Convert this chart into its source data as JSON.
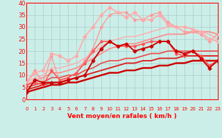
{
  "xlabel": "Vent moyen/en rafales ( km/h )",
  "bg_color": "#cceee8",
  "grid_color": "#aacccc",
  "xlim": [
    0,
    23
  ],
  "ylim": [
    0,
    40
  ],
  "xticks": [
    0,
    1,
    2,
    3,
    4,
    5,
    6,
    7,
    8,
    9,
    10,
    11,
    12,
    13,
    14,
    15,
    16,
    17,
    18,
    19,
    20,
    21,
    22,
    23
  ],
  "yticks": [
    0,
    5,
    10,
    15,
    20,
    25,
    30,
    35,
    40
  ],
  "series": [
    {
      "x": [
        0,
        1,
        2,
        3,
        4,
        5,
        6,
        7,
        8,
        9,
        10,
        11,
        12,
        13,
        14,
        15,
        16,
        17,
        18,
        19,
        20,
        21,
        22,
        23
      ],
      "y": [
        3,
        4,
        5,
        6,
        6,
        7,
        7,
        8,
        9,
        10,
        11,
        11,
        12,
        12,
        13,
        13,
        14,
        14,
        15,
        15,
        16,
        16,
        16,
        16
      ],
      "color": "#cc0000",
      "lw": 1.8,
      "marker": null,
      "ms": 0,
      "zorder": 5
    },
    {
      "x": [
        0,
        1,
        2,
        3,
        4,
        5,
        6,
        7,
        8,
        9,
        10,
        11,
        12,
        13,
        14,
        15,
        16,
        17,
        18,
        19,
        20,
        21,
        22,
        23
      ],
      "y": [
        4,
        5,
        6,
        7,
        7,
        8,
        9,
        10,
        11,
        12,
        13,
        14,
        15,
        15,
        16,
        16,
        17,
        17,
        17,
        18,
        18,
        18,
        18,
        18
      ],
      "color": "#dd2222",
      "lw": 1.4,
      "marker": null,
      "ms": 0,
      "zorder": 4
    },
    {
      "x": [
        0,
        1,
        2,
        3,
        4,
        5,
        6,
        7,
        8,
        9,
        10,
        11,
        12,
        13,
        14,
        15,
        16,
        17,
        18,
        19,
        20,
        21,
        22,
        23
      ],
      "y": [
        5,
        6,
        7,
        9,
        9,
        10,
        10,
        12,
        13,
        15,
        16,
        16,
        17,
        17,
        18,
        19,
        19,
        20,
        20,
        20,
        20,
        20,
        20,
        20
      ],
      "color": "#ee4444",
      "lw": 1.2,
      "marker": null,
      "ms": 0,
      "zorder": 3
    },
    {
      "x": [
        0,
        1,
        2,
        3,
        4,
        5,
        6,
        7,
        8,
        9,
        10,
        11,
        12,
        13,
        14,
        15,
        16,
        17,
        18,
        19,
        20,
        21,
        22,
        23
      ],
      "y": [
        6,
        8,
        9,
        11,
        11,
        12,
        13,
        15,
        17,
        19,
        21,
        22,
        23,
        23,
        24,
        25,
        26,
        27,
        27,
        27,
        28,
        28,
        28,
        27
      ],
      "color": "#ff8888",
      "lw": 1.2,
      "marker": null,
      "ms": 0,
      "zorder": 2
    },
    {
      "x": [
        0,
        1,
        2,
        3,
        4,
        5,
        6,
        7,
        8,
        9,
        10,
        11,
        12,
        13,
        14,
        15,
        16,
        17,
        18,
        19,
        20,
        21,
        22,
        23
      ],
      "y": [
        7,
        9,
        10,
        13,
        13,
        14,
        15,
        17,
        19,
        22,
        24,
        25,
        26,
        26,
        27,
        28,
        29,
        30,
        30,
        30,
        29,
        28,
        27,
        25
      ],
      "color": "#ffaaaa",
      "lw": 1.0,
      "marker": null,
      "ms": 0,
      "zorder": 2
    },
    {
      "x": [
        0,
        1,
        2,
        3,
        4,
        5,
        6,
        7,
        8,
        9,
        10,
        11,
        12,
        13,
        14,
        15,
        16,
        17,
        18,
        19,
        20,
        21,
        22,
        23
      ],
      "y": [
        3,
        8,
        7,
        7,
        7,
        8,
        9,
        10,
        16,
        21,
        24,
        22,
        23,
        20,
        21,
        22,
        24,
        24,
        20,
        19,
        20,
        17,
        13,
        16
      ],
      "color": "#cc0000",
      "lw": 1.4,
      "marker": "D",
      "ms": 2.5,
      "zorder": 6
    },
    {
      "x": [
        0,
        1,
        2,
        3,
        4,
        5,
        6,
        7,
        8,
        9,
        10,
        11,
        12,
        13,
        14,
        15,
        16,
        17,
        18,
        19,
        20,
        21,
        22,
        23
      ],
      "y": [
        6,
        7,
        6,
        12,
        8,
        9,
        11,
        15,
        20,
        24,
        24,
        22,
        22,
        22,
        23,
        24,
        24,
        24,
        19,
        18,
        20,
        18,
        14,
        16
      ],
      "color": "#ff5555",
      "lw": 1.2,
      "marker": "D",
      "ms": 2.0,
      "zorder": 5
    },
    {
      "x": [
        0,
        1,
        2,
        3,
        4,
        5,
        6,
        7,
        8,
        9,
        10,
        11,
        12,
        13,
        14,
        15,
        16,
        17,
        18,
        19,
        20,
        21,
        22,
        23
      ],
      "y": [
        7,
        11,
        12,
        19,
        18,
        16,
        18,
        26,
        30,
        35,
        38,
        36,
        34,
        36,
        33,
        33,
        35,
        31,
        30,
        30,
        29,
        28,
        25,
        24
      ],
      "color": "#ffaaaa",
      "lw": 1.2,
      "marker": "D",
      "ms": 2.5,
      "zorder": 4
    },
    {
      "x": [
        0,
        1,
        2,
        3,
        4,
        5,
        6,
        7,
        8,
        9,
        10,
        11,
        12,
        13,
        14,
        15,
        16,
        17,
        18,
        19,
        20,
        21,
        22,
        23
      ],
      "y": [
        7,
        12,
        7,
        18,
        7,
        9,
        11,
        16,
        21,
        30,
        35,
        36,
        36,
        33,
        33,
        35,
        36,
        32,
        30,
        28,
        28,
        27,
        24,
        27
      ],
      "color": "#ff9999",
      "lw": 1.0,
      "marker": "D",
      "ms": 2.0,
      "zorder": 3
    }
  ]
}
